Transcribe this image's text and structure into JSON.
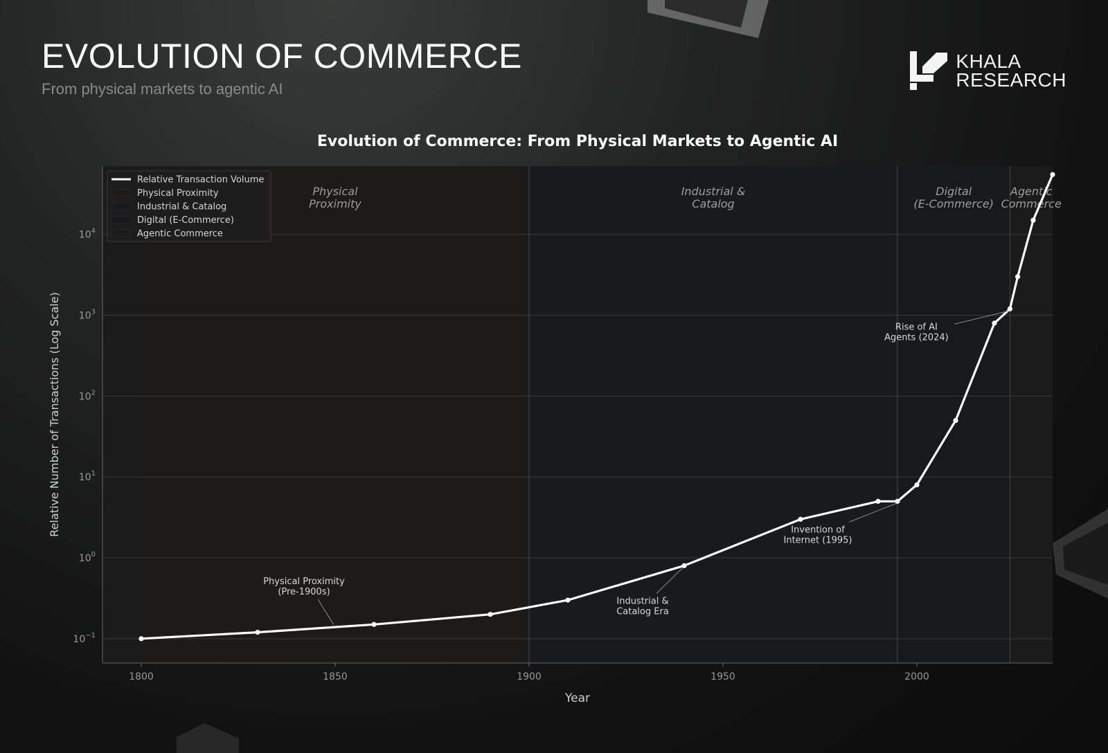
{
  "page": {
    "title": "EVOLUTION OF COMMERCE",
    "subtitle": "From physical markets to agentic AI",
    "brand_line1": "KHALA",
    "brand_line2": "RESEARCH",
    "logo_icon": "khala-logo-icon"
  },
  "colors": {
    "line": "#ffffff",
    "era_physical": "#1c1b1a",
    "era_industrial": "#171b1e",
    "era_digital": "#161a1d",
    "era_agentic": "#1b1b1b",
    "grid": "#3a3a3a"
  },
  "chart_data": {
    "type": "line",
    "title": "Evolution of Commerce: From Physical Markets to Agentic AI",
    "xlabel": "Year",
    "ylabel": "Relative Number of Transactions (Log Scale)",
    "yscale": "log",
    "xlim": [
      1790,
      2035
    ],
    "ylim": [
      0.05,
      70000
    ],
    "x_ticks": [
      1800,
      1850,
      1900,
      1950,
      2000
    ],
    "y_ticks": [
      {
        "value": 0.1,
        "base": "10",
        "exp": "−1"
      },
      {
        "value": 1,
        "base": "10",
        "exp": "0"
      },
      {
        "value": 10,
        "base": "10",
        "exp": "1"
      },
      {
        "value": 100,
        "base": "10",
        "exp": "2"
      },
      {
        "value": 1000,
        "base": "10",
        "exp": "3"
      },
      {
        "value": 10000,
        "base": "10",
        "exp": "4"
      }
    ],
    "series": [
      {
        "name": "Relative Transaction Volume",
        "x": [
          1800,
          1830,
          1860,
          1890,
          1910,
          1940,
          1970,
          1990,
          1995,
          2000,
          2010,
          2020,
          2024,
          2026,
          2030,
          2035
        ],
        "y": [
          0.1,
          0.12,
          0.15,
          0.2,
          0.3,
          0.8,
          3,
          5,
          5,
          8,
          50,
          800,
          1200,
          3000,
          15000,
          55000
        ]
      }
    ],
    "eras": [
      {
        "name": "Physical Proximity",
        "label_lines": [
          "Physical",
          "Proximity"
        ],
        "start": 1800,
        "end": 1900,
        "color_key": "era_physical"
      },
      {
        "name": "Industrial & Catalog",
        "label_lines": [
          "Industrial &",
          "Catalog"
        ],
        "start": 1900,
        "end": 1995,
        "color_key": "era_industrial"
      },
      {
        "name": "Digital (E-Commerce)",
        "label_lines": [
          "Digital",
          "(E-Commerce)"
        ],
        "start": 1995,
        "end": 2024,
        "color_key": "era_digital"
      },
      {
        "name": "Agentic Commerce",
        "label_lines": [
          "Agentic",
          "Commerce"
        ],
        "start": 2024,
        "end": 2035,
        "color_key": "era_agentic"
      }
    ],
    "annotations": [
      {
        "lines": [
          "Physical Proximity",
          "(Pre-1900s)"
        ],
        "point_x": 1850,
        "point_y": 0.14
      },
      {
        "lines": [
          "Industrial &",
          "Catalog Era"
        ],
        "point_x": 1940,
        "point_y": 0.8
      },
      {
        "lines": [
          "Invention of",
          "Internet (1995)"
        ],
        "point_x": 1995,
        "point_y": 5
      },
      {
        "lines": [
          "Rise of AI",
          "Agents (2024)"
        ],
        "point_x": 2024,
        "point_y": 1200
      }
    ],
    "legend": {
      "position": "top-left",
      "entries": [
        "Relative Transaction Volume",
        "Physical Proximity",
        "Industrial & Catalog",
        "Digital (E-Commerce)",
        "Agentic Commerce"
      ]
    },
    "grid": true
  }
}
